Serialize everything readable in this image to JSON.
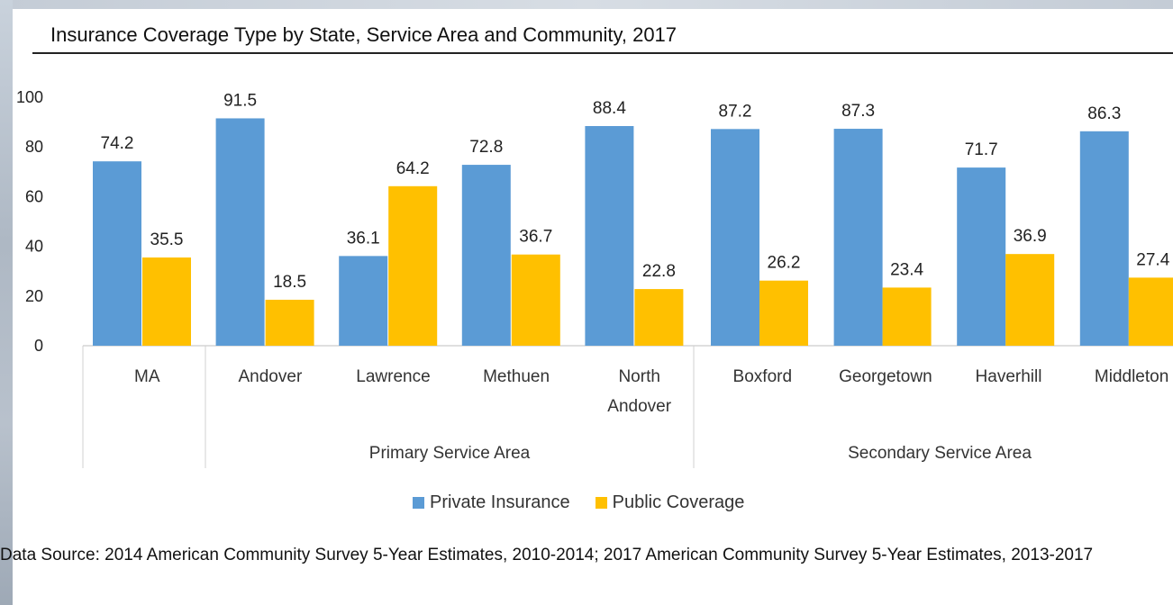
{
  "title": "Insurance Coverage Type by State, Service Area and Community, 2017",
  "source": "Data Source: 2014 American Community Survey 5-Year Estimates, 2010-2014; 2017 American Community Survey 5-Year Estimates, 2013-2017",
  "legend": {
    "private": "Private Insurance",
    "public": "Public Coverage"
  },
  "colors": {
    "private": "#5B9BD5",
    "public": "#FFC000"
  },
  "chart_data": {
    "type": "bar",
    "title": "Insurance Coverage Type by State, Service Area and Community, 2017",
    "categories": [
      "MA",
      "Andover",
      "Lawrence",
      "Methuen",
      "North Andover",
      "Boxford",
      "Georgetown",
      "Haverhill",
      "Middleton"
    ],
    "category_lines": [
      [
        "MA"
      ],
      [
        "Andover"
      ],
      [
        "Lawrence"
      ],
      [
        "Methuen"
      ],
      [
        "North",
        "Andover"
      ],
      [
        "Boxford"
      ],
      [
        "Georgetown"
      ],
      [
        "Haverhill"
      ],
      [
        "Middleton"
      ]
    ],
    "groups": [
      {
        "label": "",
        "categories": [
          "MA"
        ]
      },
      {
        "label": "Primary Service Area",
        "categories": [
          "Andover",
          "Lawrence",
          "Methuen",
          "North Andover"
        ]
      },
      {
        "label": "Secondary Service Area",
        "categories": [
          "Boxford",
          "Georgetown",
          "Haverhill",
          "Middleton"
        ]
      }
    ],
    "series": [
      {
        "name": "Private Insurance",
        "values": [
          74.2,
          91.5,
          36.1,
          72.8,
          88.4,
          87.2,
          87.3,
          71.7,
          86.3
        ]
      },
      {
        "name": "Public Coverage",
        "values": [
          35.5,
          18.5,
          64.2,
          36.7,
          22.8,
          26.2,
          23.4,
          36.9,
          27.4
        ]
      }
    ],
    "yticks": [
      0,
      20,
      40,
      60,
      80,
      100
    ],
    "ylim": [
      0,
      100
    ],
    "grid": false,
    "legend_position": "bottom"
  }
}
